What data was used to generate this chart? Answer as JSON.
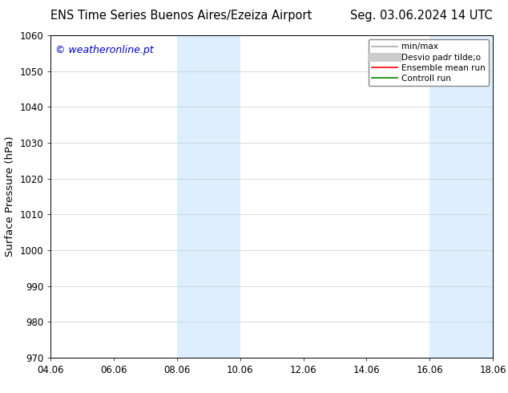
{
  "title_left": "ENS Time Series Buenos Aires/Ezeiza Airport",
  "title_right": "Seg. 03.06.2024 14 UTC",
  "ylabel": "Surface Pressure (hPa)",
  "ylim": [
    970,
    1060
  ],
  "yticks": [
    970,
    980,
    990,
    1000,
    1010,
    1020,
    1030,
    1040,
    1050,
    1060
  ],
  "xlim_start": 4.06,
  "xlim_end": 18.06,
  "xtick_labels": [
    "04.06",
    "06.06",
    "08.06",
    "10.06",
    "12.06",
    "14.06",
    "16.06",
    "18.06"
  ],
  "xtick_positions": [
    4.06,
    6.06,
    8.06,
    10.06,
    12.06,
    14.06,
    16.06,
    18.06
  ],
  "shaded_bands": [
    {
      "x_start": 8.06,
      "x_end": 10.06
    },
    {
      "x_start": 16.06,
      "x_end": 18.06
    }
  ],
  "shaded_color": "#ddeeff",
  "watermark_text": "© weatheronline.pt",
  "watermark_color": "#0000cc",
  "legend_entries": [
    {
      "label": "min/max",
      "color": "#aaaaaa",
      "linestyle": "-",
      "linewidth": 1.2,
      "type": "line"
    },
    {
      "label": "Desvio padr tilde;o",
      "color": "#cccccc",
      "linestyle": "-",
      "linewidth": 8,
      "type": "line"
    },
    {
      "label": "Ensemble mean run",
      "color": "red",
      "linestyle": "-",
      "linewidth": 1.2,
      "type": "line"
    },
    {
      "label": "Controll run",
      "color": "green",
      "linestyle": "-",
      "linewidth": 1.2,
      "type": "line"
    }
  ],
  "background_color": "#ffffff",
  "grid_color": "#cccccc",
  "title_fontsize": 10.5,
  "tick_fontsize": 8.5,
  "ylabel_fontsize": 9.5,
  "watermark_fontsize": 9,
  "legend_fontsize": 7.5
}
